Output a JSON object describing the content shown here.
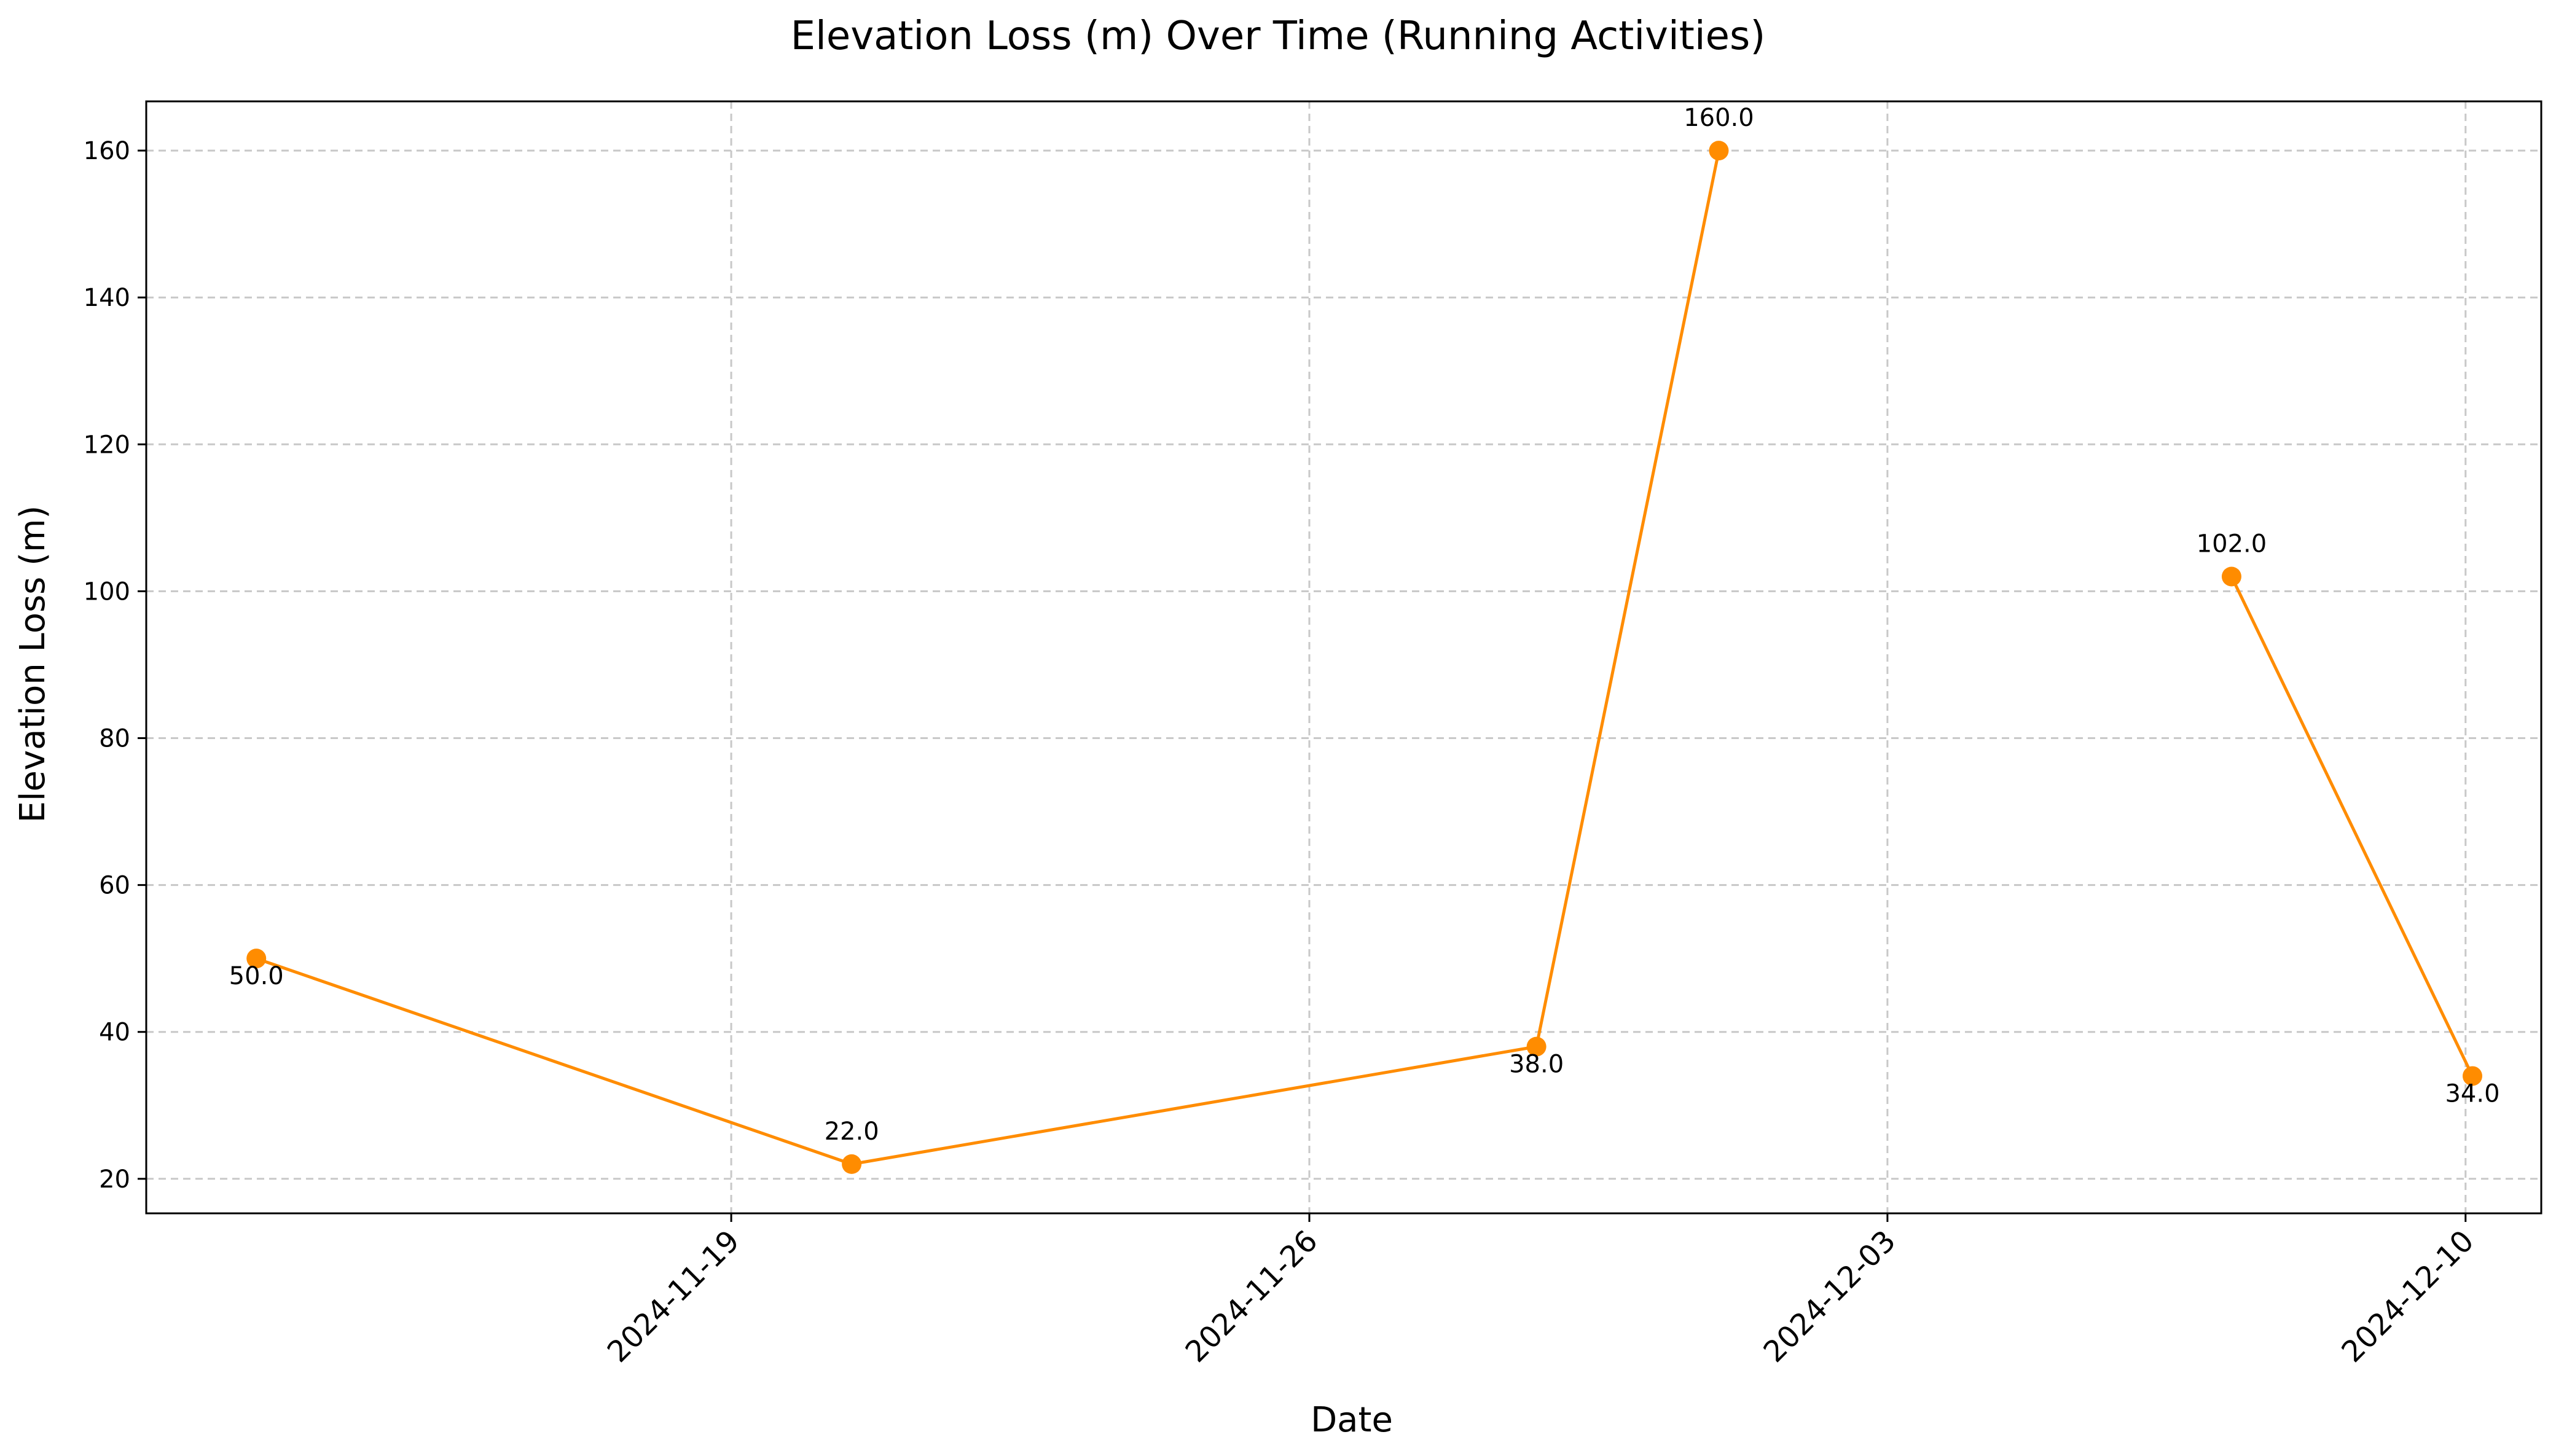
{
  "chart_data": {
    "type": "line",
    "title": "Elevation Loss (m) Over Time (Running Activities)",
    "xlabel": "Date",
    "ylabel": "Elevation Loss (m)",
    "x_ticks": [
      "2024-11-19",
      "2024-11-26",
      "2024-12-03",
      "2024-12-10"
    ],
    "y_ticks": [
      20,
      40,
      60,
      80,
      100,
      120,
      140,
      160
    ],
    "xlim": [
      "2024-11-11T22:00",
      "2024-12-10T22:00"
    ],
    "ylim": [
      15.3,
      166.7
    ],
    "grid": true,
    "colors": {
      "line": "#ff8c00",
      "marker": "#ff8c00",
      "grid": "#c8c8c8",
      "axis": "#000000"
    },
    "series": [
      {
        "points": [
          {
            "x": "2024-11-13T06:00",
            "y": 50.0,
            "label": "50.0",
            "label_pos": "below"
          },
          {
            "x": "2024-11-20T11:00",
            "y": 22.0,
            "label": "22.0",
            "label_pos": "above"
          },
          {
            "x": "2024-11-28T18:00",
            "y": 38.0,
            "label": "38.0",
            "label_pos": "below"
          },
          {
            "x": "2024-11-30T23:00",
            "y": 160.0,
            "label": "160.0",
            "label_pos": "above"
          }
        ]
      },
      {
        "points": [
          {
            "x": "2024-12-07T04:00",
            "y": 102.0,
            "label": "102.0",
            "label_pos": "above"
          },
          {
            "x": "2024-12-10T02:00",
            "y": 34.0,
            "label": "34.0",
            "label_pos": "below"
          }
        ]
      }
    ]
  }
}
